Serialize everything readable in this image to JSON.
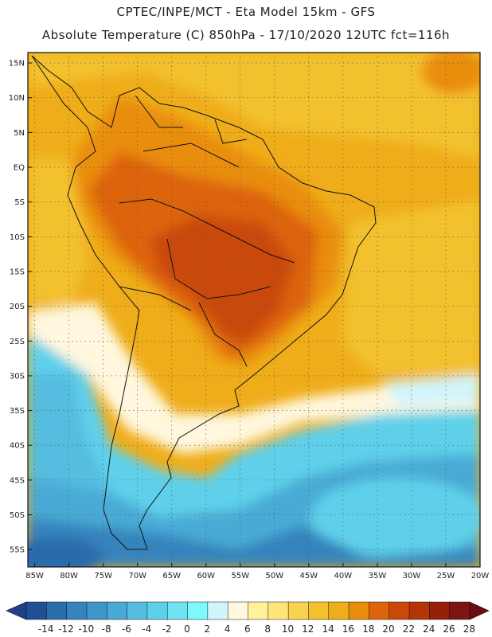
{
  "title": {
    "line1": "CPTEC/INPE/MCT -  Eta Model 15km - GFS",
    "line2": "Absolute Temperature (C) 850hPa - 17/10/2020 12UTC fct=116h"
  },
  "axes": {
    "lat_labels": [
      "15N",
      "10N",
      "5N",
      "EQ",
      "5S",
      "10S",
      "15S",
      "20S",
      "25S",
      "30S",
      "35S",
      "40S",
      "45S",
      "50S",
      "55S"
    ],
    "lat_values": [
      15,
      10,
      5,
      0,
      -5,
      -10,
      -15,
      -20,
      -25,
      -30,
      -35,
      -40,
      -45,
      -50,
      -55
    ],
    "lon_labels": [
      "85W",
      "80W",
      "75W",
      "70W",
      "65W",
      "60W",
      "55W",
      "50W",
      "45W",
      "40W",
      "35W",
      "30W",
      "25W",
      "20W"
    ],
    "lon_values": [
      -85,
      -80,
      -75,
      -70,
      -65,
      -60,
      -55,
      -50,
      -45,
      -40,
      -35,
      -30,
      -25,
      -20
    ],
    "lat_range": [
      -57.5,
      16.5
    ],
    "lon_range": [
      -86,
      -20
    ]
  },
  "colorbar": {
    "labels": [
      "-14",
      "-12",
      "-10",
      "-8",
      "-6",
      "-4",
      "-2",
      "0",
      "2",
      "4",
      "6",
      "8",
      "10",
      "12",
      "14",
      "16",
      "18",
      "20",
      "22",
      "24",
      "26",
      "28"
    ],
    "colors": [
      "#1f4f96",
      "#2b6cab",
      "#3584bd",
      "#3f97c9",
      "#49aad5",
      "#55bde0",
      "#5fd0ea",
      "#6ee3f2",
      "#7ff8fc",
      "#d2f4fb",
      "#fff7de",
      "#fff29a",
      "#fde57a",
      "#f8d350",
      "#f3c12e",
      "#efad1a",
      "#e98d0f",
      "#dd6409",
      "#c9480a",
      "#b33508",
      "#961f0a",
      "#7c1412"
    ],
    "under_color": "#21408a",
    "over_color": "#6c0b18"
  },
  "map": {
    "regions": [
      {
        "name": "tropical-warm",
        "color": "#efad1a"
      },
      {
        "name": "hot-core",
        "color": "#dd6409"
      },
      {
        "name": "hottest-core",
        "color": "#c9480a"
      },
      {
        "name": "cool-ocean",
        "color": "#55bde0"
      },
      {
        "name": "cold-ocean",
        "color": "#3584bd"
      }
    ],
    "grid_lines": true
  }
}
